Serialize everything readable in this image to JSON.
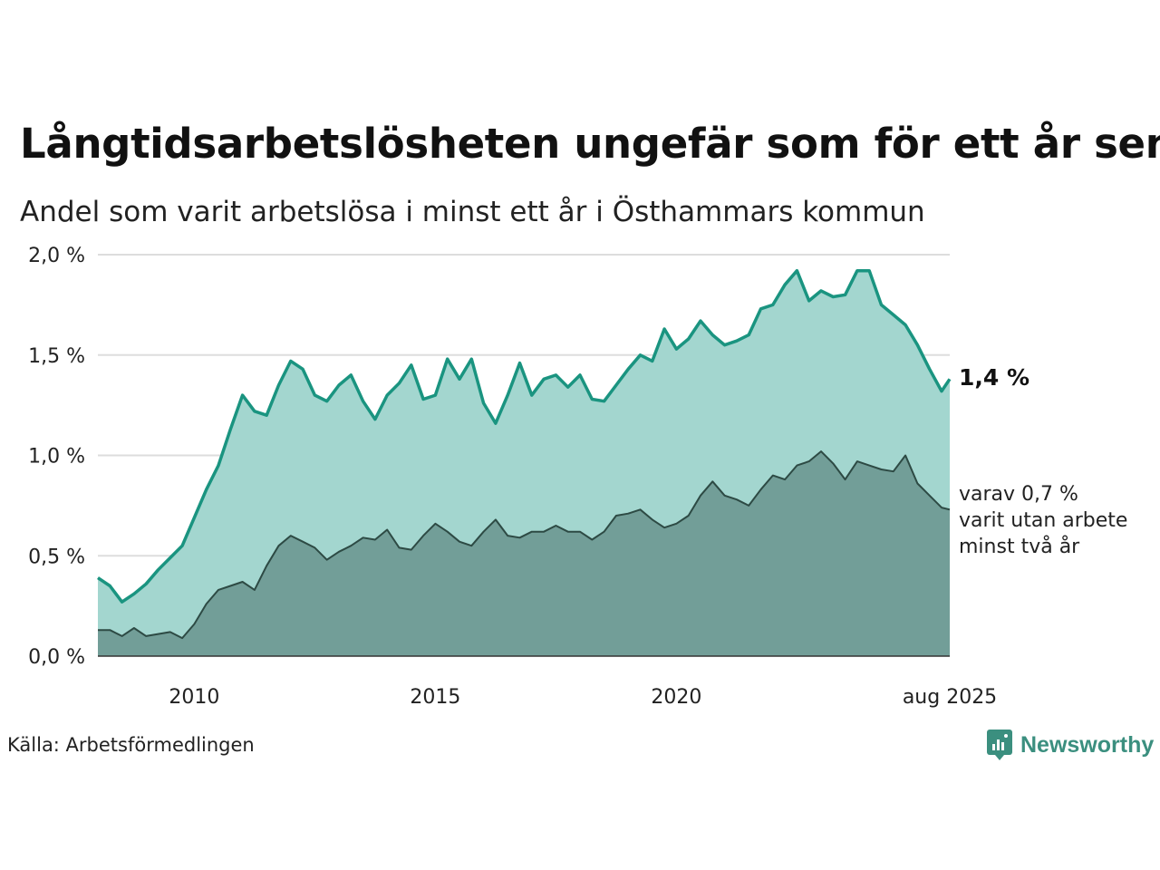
{
  "title": "Långtidsarbetslösheten ungefär som för ett år sen",
  "subtitle": "Andel som varit arbetslösa i minst ett år i Östhammars kommun",
  "source": "Källa: Arbetsförmedlingen",
  "brand": "Newsworthy",
  "colors": {
    "line_main": "#1a9480",
    "area_main": "#a3d6cf",
    "line_sub": "#2d4a44",
    "area_sub": "#729e98",
    "grid": "#dddddd",
    "brand": "#3b8f7f"
  },
  "chart_data": {
    "type": "area",
    "y_tick_labels": [
      "0,0 %",
      "0,5 %",
      "1,0 %",
      "1,5 %",
      "2,0 %"
    ],
    "x_tick_labels": [
      "2010",
      "2015",
      "2020",
      "aug 2025"
    ],
    "ylim": [
      0,
      2.0
    ],
    "grid": true,
    "x_start": "2008-01",
    "x_end": "2025-08",
    "end_label_main": "1,4 %",
    "end_label_sub": [
      "varav 0,7 %",
      "varit utan arbete",
      "minst två år"
    ],
    "series": [
      {
        "key": "minst_ett_ar",
        "points": [
          [
            2008.0,
            0.39
          ],
          [
            2008.25,
            0.35
          ],
          [
            2008.5,
            0.27
          ],
          [
            2008.75,
            0.31
          ],
          [
            2009.0,
            0.36
          ],
          [
            2009.25,
            0.43
          ],
          [
            2009.5,
            0.49
          ],
          [
            2009.75,
            0.55
          ],
          [
            2010.0,
            0.69
          ],
          [
            2010.25,
            0.83
          ],
          [
            2010.5,
            0.95
          ],
          [
            2010.75,
            1.13
          ],
          [
            2011.0,
            1.3
          ],
          [
            2011.25,
            1.22
          ],
          [
            2011.5,
            1.2
          ],
          [
            2011.75,
            1.35
          ],
          [
            2012.0,
            1.47
          ],
          [
            2012.25,
            1.43
          ],
          [
            2012.5,
            1.3
          ],
          [
            2012.75,
            1.27
          ],
          [
            2013.0,
            1.35
          ],
          [
            2013.25,
            1.4
          ],
          [
            2013.5,
            1.27
          ],
          [
            2013.75,
            1.18
          ],
          [
            2014.0,
            1.3
          ],
          [
            2014.25,
            1.36
          ],
          [
            2014.5,
            1.45
          ],
          [
            2014.75,
            1.28
          ],
          [
            2015.0,
            1.3
          ],
          [
            2015.25,
            1.48
          ],
          [
            2015.5,
            1.38
          ],
          [
            2015.75,
            1.48
          ],
          [
            2016.0,
            1.26
          ],
          [
            2016.25,
            1.16
          ],
          [
            2016.5,
            1.3
          ],
          [
            2016.75,
            1.46
          ],
          [
            2017.0,
            1.3
          ],
          [
            2017.25,
            1.38
          ],
          [
            2017.5,
            1.4
          ],
          [
            2017.75,
            1.34
          ],
          [
            2018.0,
            1.4
          ],
          [
            2018.25,
            1.28
          ],
          [
            2018.5,
            1.27
          ],
          [
            2018.75,
            1.35
          ],
          [
            2019.0,
            1.43
          ],
          [
            2019.25,
            1.5
          ],
          [
            2019.5,
            1.47
          ],
          [
            2019.75,
            1.63
          ],
          [
            2020.0,
            1.53
          ],
          [
            2020.25,
            1.58
          ],
          [
            2020.5,
            1.67
          ],
          [
            2020.75,
            1.6
          ],
          [
            2021.0,
            1.55
          ],
          [
            2021.25,
            1.57
          ],
          [
            2021.5,
            1.6
          ],
          [
            2021.75,
            1.73
          ],
          [
            2022.0,
            1.75
          ],
          [
            2022.25,
            1.85
          ],
          [
            2022.5,
            1.92
          ],
          [
            2022.75,
            1.77
          ],
          [
            2023.0,
            1.82
          ],
          [
            2023.25,
            1.79
          ],
          [
            2023.5,
            1.8
          ],
          [
            2023.75,
            1.92
          ],
          [
            2024.0,
            1.92
          ],
          [
            2024.25,
            1.75
          ],
          [
            2024.5,
            1.7
          ],
          [
            2024.75,
            1.65
          ],
          [
            2025.0,
            1.55
          ],
          [
            2025.25,
            1.43
          ],
          [
            2025.5,
            1.32
          ],
          [
            2025.67,
            1.38
          ]
        ]
      },
      {
        "key": "minst_tva_ar",
        "points": [
          [
            2008.0,
            0.13
          ],
          [
            2008.25,
            0.13
          ],
          [
            2008.5,
            0.1
          ],
          [
            2008.75,
            0.14
          ],
          [
            2009.0,
            0.1
          ],
          [
            2009.25,
            0.11
          ],
          [
            2009.5,
            0.12
          ],
          [
            2009.75,
            0.09
          ],
          [
            2010.0,
            0.16
          ],
          [
            2010.25,
            0.26
          ],
          [
            2010.5,
            0.33
          ],
          [
            2010.75,
            0.35
          ],
          [
            2011.0,
            0.37
          ],
          [
            2011.25,
            0.33
          ],
          [
            2011.5,
            0.45
          ],
          [
            2011.75,
            0.55
          ],
          [
            2012.0,
            0.6
          ],
          [
            2012.25,
            0.57
          ],
          [
            2012.5,
            0.54
          ],
          [
            2012.75,
            0.48
          ],
          [
            2013.0,
            0.52
          ],
          [
            2013.25,
            0.55
          ],
          [
            2013.5,
            0.59
          ],
          [
            2013.75,
            0.58
          ],
          [
            2014.0,
            0.63
          ],
          [
            2014.25,
            0.54
          ],
          [
            2014.5,
            0.53
          ],
          [
            2014.75,
            0.6
          ],
          [
            2015.0,
            0.66
          ],
          [
            2015.25,
            0.62
          ],
          [
            2015.5,
            0.57
          ],
          [
            2015.75,
            0.55
          ],
          [
            2016.0,
            0.62
          ],
          [
            2016.25,
            0.68
          ],
          [
            2016.5,
            0.6
          ],
          [
            2016.75,
            0.59
          ],
          [
            2017.0,
            0.62
          ],
          [
            2017.25,
            0.62
          ],
          [
            2017.5,
            0.65
          ],
          [
            2017.75,
            0.62
          ],
          [
            2018.0,
            0.62
          ],
          [
            2018.25,
            0.58
          ],
          [
            2018.5,
            0.62
          ],
          [
            2018.75,
            0.7
          ],
          [
            2019.0,
            0.71
          ],
          [
            2019.25,
            0.73
          ],
          [
            2019.5,
            0.68
          ],
          [
            2019.75,
            0.64
          ],
          [
            2020.0,
            0.66
          ],
          [
            2020.25,
            0.7
          ],
          [
            2020.5,
            0.8
          ],
          [
            2020.75,
            0.87
          ],
          [
            2021.0,
            0.8
          ],
          [
            2021.25,
            0.78
          ],
          [
            2021.5,
            0.75
          ],
          [
            2021.75,
            0.83
          ],
          [
            2022.0,
            0.9
          ],
          [
            2022.25,
            0.88
          ],
          [
            2022.5,
            0.95
          ],
          [
            2022.75,
            0.97
          ],
          [
            2023.0,
            1.02
          ],
          [
            2023.25,
            0.96
          ],
          [
            2023.5,
            0.88
          ],
          [
            2023.75,
            0.97
          ],
          [
            2024.0,
            0.95
          ],
          [
            2024.25,
            0.93
          ],
          [
            2024.5,
            0.92
          ],
          [
            2024.75,
            1.0
          ],
          [
            2025.0,
            0.86
          ],
          [
            2025.25,
            0.8
          ],
          [
            2025.5,
            0.74
          ],
          [
            2025.67,
            0.73
          ]
        ]
      }
    ]
  }
}
